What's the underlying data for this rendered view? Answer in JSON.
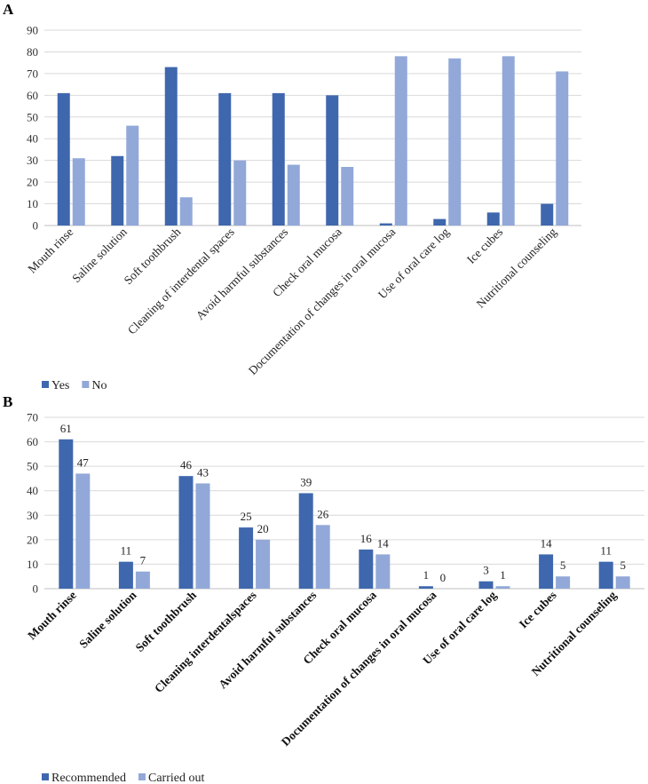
{
  "chart_data": [
    {
      "panel": "A",
      "type": "bar",
      "ylim": [
        0,
        90
      ],
      "yticks": [
        0,
        10,
        20,
        30,
        40,
        50,
        60,
        70,
        80,
        90
      ],
      "categories": [
        "Mouth rinse",
        "Saline solution",
        "Soft toothbrush",
        "Cleaning of interdental spaces",
        "Avoid harmful substances",
        "Check oral mucosa",
        "Documentation of changes in oral mucosa",
        "Use of oral care log",
        "Ice cubes",
        "Nutritional counseling"
      ],
      "series": [
        {
          "name": "Yes",
          "color": "#3f67ae",
          "values": [
            61,
            32,
            73,
            61,
            61,
            60,
            1,
            3,
            6,
            10
          ]
        },
        {
          "name": "No",
          "color": "#92a8d8",
          "values": [
            31,
            46,
            13,
            30,
            28,
            27,
            78,
            77,
            78,
            71
          ]
        }
      ],
      "data_labels": false,
      "legend": "bottom-left"
    },
    {
      "panel": "B",
      "type": "bar",
      "ylim": [
        0,
        70
      ],
      "yticks": [
        0,
        10,
        20,
        30,
        40,
        50,
        60,
        70
      ],
      "categories": [
        "Mouth rinse",
        "Saline solution",
        "Soft toothbrush",
        "Cleaning interdentalspaces",
        "Avoid harmful substances",
        "Check oral mucosa",
        "Documentation of changes in oral mucosa",
        "Use of oral care log",
        "Ice cubes",
        "Nutritional counseling"
      ],
      "series": [
        {
          "name": "Recommended",
          "color": "#3f67ae",
          "values": [
            61,
            11,
            46,
            25,
            39,
            16,
            1,
            3,
            14,
            11
          ]
        },
        {
          "name": "Carried out",
          "color": "#92a8d8",
          "values": [
            47,
            7,
            43,
            20,
            26,
            14,
            0,
            1,
            5,
            5
          ]
        }
      ],
      "data_labels": true,
      "legend": "bottom-left"
    }
  ]
}
